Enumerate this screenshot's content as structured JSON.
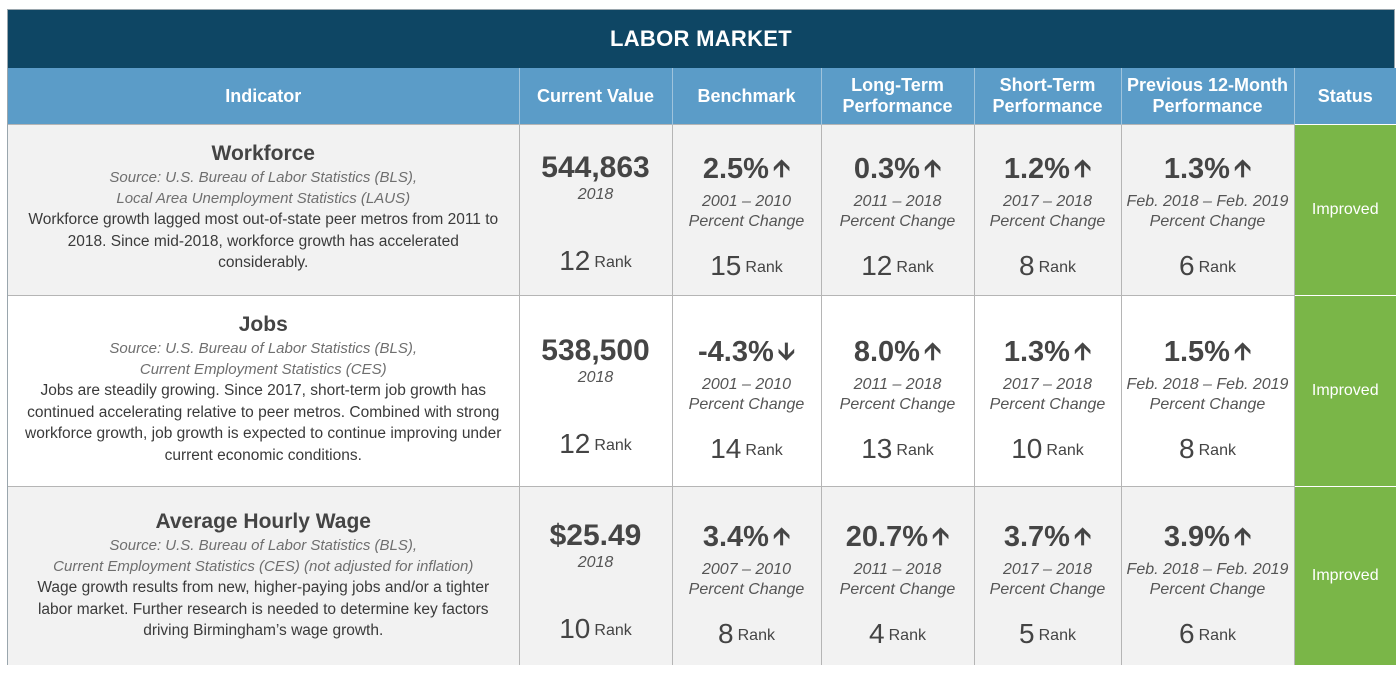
{
  "title": "LABOR MARKET",
  "headers": {
    "indicator": "Indicator",
    "current": "Current Value",
    "benchmark": "Benchmark",
    "long_term_1": "Long-Term",
    "long_term_2": "Performance",
    "short_term_1": "Short-Term",
    "short_term_2": "Performance",
    "prev_1": "Previous 12-Month",
    "prev_2": "Performance",
    "status": "Status"
  },
  "rank_word": "Rank",
  "rows": [
    {
      "name": "Workforce",
      "source_1": "Source: U.S. Bureau of Labor Statistics (BLS),",
      "source_2": "Local Area Unemployment Statistics (LAUS)",
      "desc": "Workforce growth lagged most out-of-state peer metros from 2011 to 2018. Since mid-2018, workforce growth has accelerated considerably.",
      "current": {
        "value": "544,863",
        "year": "2018",
        "rank": "12"
      },
      "benchmark": {
        "pct": "2.5%",
        "arrow": "up",
        "period": "2001 – 2010",
        "label": "Percent Change",
        "rank": "15"
      },
      "long_term": {
        "pct": "0.3%",
        "arrow": "up",
        "period": "2011 – 2018",
        "label": "Percent Change",
        "rank": "12"
      },
      "short_term": {
        "pct": "1.2%",
        "arrow": "up",
        "period": "2017 – 2018",
        "label": "Percent Change",
        "rank": "8"
      },
      "prev": {
        "pct": "1.3%",
        "arrow": "up",
        "period": "Feb. 2018 – Feb. 2019",
        "label": "Percent Change",
        "rank": "6"
      },
      "status": "Improved"
    },
    {
      "name": "Jobs",
      "source_1": "Source: U.S. Bureau of Labor Statistics (BLS),",
      "source_2": "Current Employment Statistics (CES)",
      "desc": "Jobs are steadily growing. Since 2017, short-term job growth has continued accelerating relative to peer metros. Combined with strong workforce growth, job growth is expected to continue improving under current economic conditions.",
      "current": {
        "value": "538,500",
        "year": "2018",
        "rank": "12"
      },
      "benchmark": {
        "pct": "-4.3%",
        "arrow": "down",
        "period": "2001 – 2010",
        "label": "Percent Change",
        "rank": "14"
      },
      "long_term": {
        "pct": "8.0%",
        "arrow": "up",
        "period": "2011 – 2018",
        "label": "Percent Change",
        "rank": "13"
      },
      "short_term": {
        "pct": "1.3%",
        "arrow": "up",
        "period": "2017 – 2018",
        "label": "Percent Change",
        "rank": "10"
      },
      "prev": {
        "pct": "1.5%",
        "arrow": "up",
        "period": "Feb. 2018 – Feb. 2019",
        "label": "Percent Change",
        "rank": "8"
      },
      "status": "Improved"
    },
    {
      "name": "Average Hourly Wage",
      "source_1": "Source: U.S. Bureau of Labor Statistics (BLS),",
      "source_2": "Current Employment Statistics (CES) (not adjusted for inflation)",
      "desc": "Wage growth results from new, higher-paying jobs and/or a tighter labor market. Further research is needed to determine key factors driving Birmingham’s wage growth.",
      "current": {
        "value": "$25.49",
        "year": "2018",
        "rank": "10"
      },
      "benchmark": {
        "pct": "3.4%",
        "arrow": "up",
        "period": "2007 – 2010",
        "label": "Percent Change",
        "rank": "8"
      },
      "long_term": {
        "pct": "20.7%",
        "arrow": "up",
        "period": "2011 – 2018",
        "label": "Percent Change",
        "rank": "4"
      },
      "short_term": {
        "pct": "3.7%",
        "arrow": "up",
        "period": "2017 – 2018",
        "label": "Percent Change",
        "rank": "5"
      },
      "prev": {
        "pct": "3.9%",
        "arrow": "up",
        "period": "Feb. 2018 – Feb. 2019",
        "label": "Percent Change",
        "rank": "6"
      },
      "status": "Improved"
    }
  ],
  "colors": {
    "title_bg": "#0e4664",
    "header_bg": "#5b9cc8",
    "status_bg": "#7ab648"
  }
}
